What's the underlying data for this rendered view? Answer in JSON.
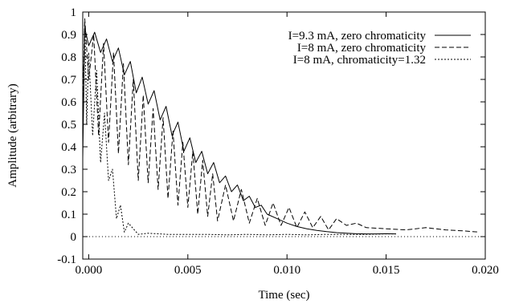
{
  "chart_data": {
    "type": "line",
    "xlabel": "Time (sec)",
    "ylabel": "Amplitude (arbitrary)",
    "xlim": [
      -0.0003,
      0.02
    ],
    "ylim": [
      -0.1,
      1.0
    ],
    "x_ticks": [
      0.0,
      0.005,
      0.01,
      0.015,
      0.02
    ],
    "x_tick_labels": [
      "0.000",
      "0.005",
      "0.010",
      "0.015",
      "0.020"
    ],
    "y_ticks": [
      -0.1,
      0,
      0.1,
      0.2,
      0.3,
      0.4,
      0.5,
      0.6,
      0.7,
      0.8,
      0.9,
      1.0
    ],
    "y_tick_labels": [
      "-0.1",
      "0",
      "0.1",
      "0.2",
      "0.3",
      "0.4",
      "0.5",
      "0.6",
      "0.7",
      "0.8",
      "0.9",
      "1"
    ],
    "zero_line": true,
    "legend_position": "top-right",
    "series": [
      {
        "name": "I=9.3 mA, zero chromaticity",
        "style": "solid",
        "x": [
          -0.0003,
          -0.0002,
          0.0,
          0.0003,
          0.0006,
          0.0009,
          0.0012,
          0.0015,
          0.0018,
          0.0021,
          0.0024,
          0.0027,
          0.003,
          0.0033,
          0.0036,
          0.0039,
          0.0042,
          0.0045,
          0.0048,
          0.0051,
          0.0054,
          0.0057,
          0.006,
          0.0063,
          0.0066,
          0.0069,
          0.0072,
          0.0075,
          0.0078,
          0.0081,
          0.0084,
          0.0087,
          0.009,
          0.0095,
          0.01,
          0.0105,
          0.011,
          0.0115,
          0.012,
          0.0125,
          0.013,
          0.0135,
          0.014,
          0.0145,
          0.015,
          0.0155
        ],
        "y": [
          0.35,
          0.93,
          0.85,
          0.91,
          0.82,
          0.88,
          0.78,
          0.84,
          0.72,
          0.78,
          0.64,
          0.71,
          0.59,
          0.65,
          0.52,
          0.58,
          0.45,
          0.51,
          0.38,
          0.44,
          0.33,
          0.38,
          0.28,
          0.33,
          0.24,
          0.27,
          0.2,
          0.23,
          0.16,
          0.18,
          0.13,
          0.14,
          0.1,
          0.08,
          0.06,
          0.045,
          0.035,
          0.028,
          0.022,
          0.018,
          0.015,
          0.013,
          0.012,
          0.012,
          0.013,
          0.012
        ]
      },
      {
        "name": "I=8 mA, zero chromaticity",
        "style": "dashed",
        "x": [
          -0.0003,
          -0.0002,
          0.0,
          0.00025,
          0.0005,
          0.00075,
          0.001,
          0.00125,
          0.0015,
          0.00175,
          0.002,
          0.00225,
          0.0025,
          0.00275,
          0.003,
          0.00325,
          0.0035,
          0.00375,
          0.004,
          0.00425,
          0.0045,
          0.00475,
          0.005,
          0.00525,
          0.0055,
          0.00575,
          0.006,
          0.00625,
          0.0065,
          0.0069,
          0.0073,
          0.0077,
          0.0081,
          0.0085,
          0.0089,
          0.0093,
          0.0097,
          0.0101,
          0.0105,
          0.0109,
          0.0113,
          0.0117,
          0.0121,
          0.0125,
          0.013,
          0.0135,
          0.014,
          0.015,
          0.016,
          0.017,
          0.018,
          0.019,
          0.0197
        ],
        "y": [
          0.55,
          0.97,
          0.7,
          0.9,
          0.45,
          0.86,
          0.42,
          0.82,
          0.37,
          0.77,
          0.32,
          0.7,
          0.25,
          0.63,
          0.24,
          0.57,
          0.21,
          0.53,
          0.17,
          0.47,
          0.14,
          0.42,
          0.13,
          0.38,
          0.1,
          0.34,
          0.09,
          0.28,
          0.07,
          0.23,
          0.07,
          0.21,
          0.06,
          0.17,
          0.05,
          0.15,
          0.05,
          0.13,
          0.04,
          0.11,
          0.04,
          0.09,
          0.03,
          0.08,
          0.05,
          0.06,
          0.04,
          0.035,
          0.03,
          0.04,
          0.03,
          0.025,
          0.02
        ]
      },
      {
        "name": "I=8 mA, chromaticity=1.32",
        "style": "dotted",
        "x": [
          -0.0003,
          -0.0002,
          -0.0001,
          0.0,
          0.0002,
          0.0004,
          0.0006,
          0.0008,
          0.001,
          0.0012,
          0.0014,
          0.0016,
          0.0018,
          0.002,
          0.0025,
          0.003,
          0.004,
          0.005,
          0.006,
          0.007,
          0.008,
          0.009,
          0.01,
          0.011,
          0.012,
          0.013,
          0.014,
          0.015,
          0.0155
        ],
        "y": [
          0.55,
          0.95,
          0.5,
          0.82,
          0.45,
          0.74,
          0.33,
          0.55,
          0.25,
          0.3,
          0.08,
          0.14,
          0.02,
          0.06,
          0.01,
          0.015,
          0.01,
          0.01,
          0.01,
          0.008,
          0.01,
          0.008,
          0.01,
          0.008,
          0.01,
          0.01,
          0.01,
          0.012,
          0.012
        ]
      }
    ]
  }
}
